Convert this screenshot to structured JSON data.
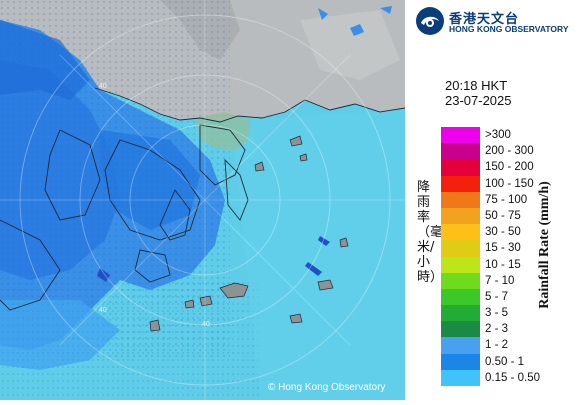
{
  "header": {
    "org_name_cn": "香港天文台",
    "org_name_en": "HONG KONG OBSERVATORY"
  },
  "timestamp": {
    "time": "20:18 HKT",
    "date": "23-07-2025"
  },
  "legend": {
    "title_cn": "降雨率（毫米/小時）",
    "title_en": "Rainfall Rate (mm/h)",
    "items": [
      {
        "label": ">300",
        "color": "#ee00ee"
      },
      {
        "label": "200 - 300",
        "color": "#c8008c"
      },
      {
        "label": "150 - 200",
        "color": "#e4003a"
      },
      {
        "label": "100 - 150",
        "color": "#f4200c"
      },
      {
        "label": "75 - 100",
        "color": "#f07818"
      },
      {
        "label": "50 - 75",
        "color": "#f2a21e"
      },
      {
        "label": "30 - 50",
        "color": "#fcc018"
      },
      {
        "label": "15 - 30",
        "color": "#e0cc14"
      },
      {
        "label": "10 - 15",
        "color": "#bce61a"
      },
      {
        "label": "7 - 10",
        "color": "#6edc1c"
      },
      {
        "label": "5 - 7",
        "color": "#3cc828"
      },
      {
        "label": "3 - 5",
        "color": "#22ac36"
      },
      {
        "label": "2 - 3",
        "color": "#1a8a44"
      },
      {
        "label": "1 - 2",
        "color": "#4aa0f0"
      },
      {
        "label": "0.50 - 1",
        "color": "#1c86e6"
      },
      {
        "label": "0.15 - 0.50",
        "color": "#3ec4f8"
      }
    ]
  },
  "map": {
    "range_ring_labels": [
      "40",
      "40",
      "40"
    ],
    "copyright": "© Hong Kong Observatory"
  }
}
